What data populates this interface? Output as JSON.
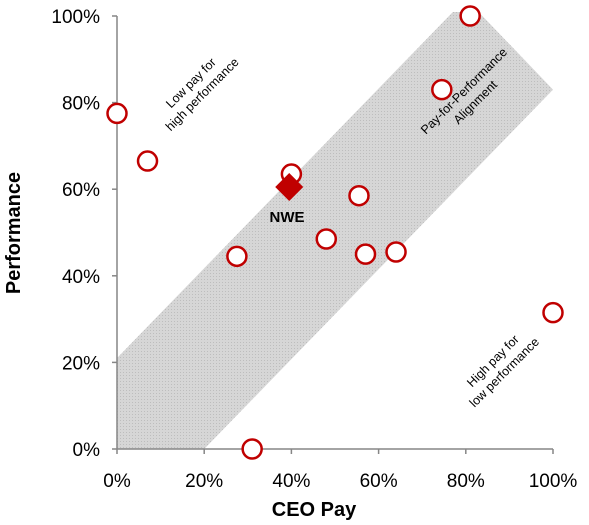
{
  "chart_data": {
    "type": "scatter",
    "title": "",
    "xlabel": "CEO Pay",
    "ylabel": "Performance",
    "xlim": [
      0,
      100
    ],
    "ylim": [
      0,
      100
    ],
    "x_ticks": [
      "0%",
      "20%",
      "40%",
      "60%",
      "80%",
      "100%"
    ],
    "y_ticks": [
      "0%",
      "20%",
      "40%",
      "60%",
      "80%",
      "100%"
    ],
    "grid": false,
    "legend": "none",
    "band": {
      "label_line1": "Pay-for-Performance",
      "label_line2": "Alignment",
      "lower_edge": [
        [
          20,
          0
        ],
        [
          100,
          83
        ]
      ],
      "upper_edge": [
        [
          0,
          21
        ],
        [
          80,
          104
        ]
      ],
      "color": "#d3d3d3"
    },
    "series": [
      {
        "marker": "open-circle",
        "color": "#c00000",
        "points": [
          {
            "x": 0,
            "y": 77.5
          },
          {
            "x": 7,
            "y": 66.5
          },
          {
            "x": 27.5,
            "y": 44.5
          },
          {
            "x": 31,
            "y": 0
          },
          {
            "x": 40,
            "y": 63.5
          },
          {
            "x": 48,
            "y": 48.5
          },
          {
            "x": 55.5,
            "y": 58.5
          },
          {
            "x": 57,
            "y": 45
          },
          {
            "x": 64,
            "y": 45.5
          },
          {
            "x": 74.5,
            "y": 83
          },
          {
            "x": 81,
            "y": 100
          },
          {
            "x": 100,
            "y": 31.5
          }
        ]
      },
      {
        "name": "NWE",
        "marker": "filled-diamond",
        "color": "#c00000",
        "points": [
          {
            "x": 39.5,
            "y": 60.5
          }
        ]
      }
    ],
    "annotations": {
      "top_left_line1": "Low pay for",
      "top_left_line2": "high performance",
      "bottom_right_line1": "High pay for",
      "bottom_right_line2": "low performance",
      "highlight_label": "NWE"
    }
  }
}
